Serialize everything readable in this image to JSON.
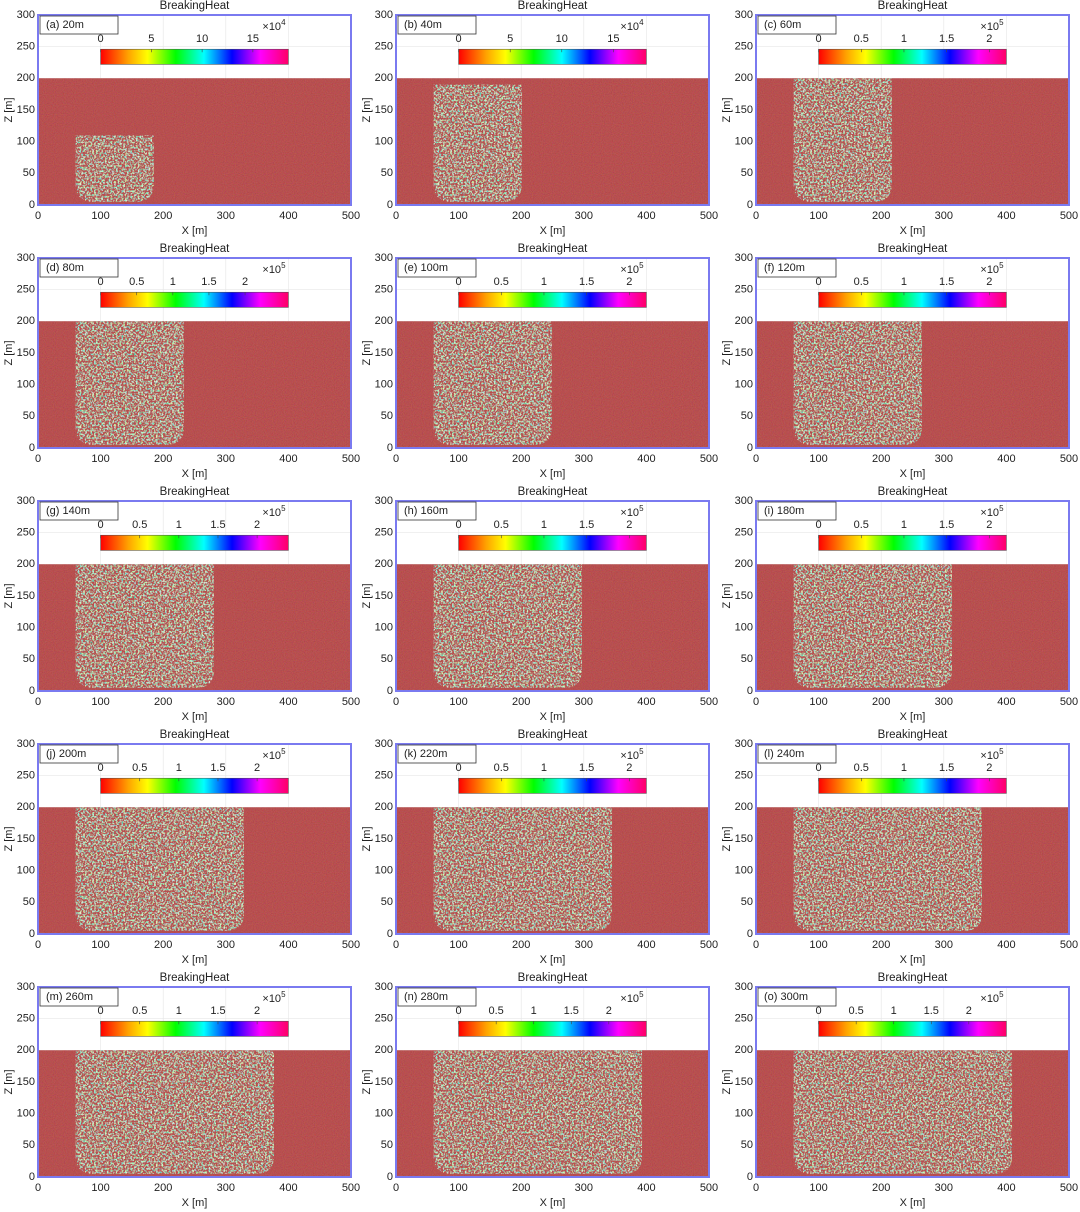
{
  "chart_data": [
    {
      "type": "image",
      "title": "BreakingHeat",
      "label": "(a) 20m",
      "x_label": "X [m]",
      "y_label": "Z [m]",
      "xlim": [
        0,
        500
      ],
      "ylim": [
        0,
        300
      ],
      "xticks": [
        0,
        100,
        200,
        300,
        400,
        500
      ],
      "yticks": [
        0,
        50,
        100,
        150,
        200,
        250,
        300
      ],
      "colorbar_lim": [
        0,
        18.5
      ],
      "colorbar_ticks": [
        0,
        5,
        10,
        15
      ],
      "colorbar_exponent": "×10",
      "colorbar_power": 4
    },
    {
      "type": "image",
      "title": "BreakingHeat",
      "label": "(b) 40m",
      "x_label": "X [m]",
      "y_label": "Z [m]",
      "xlim": [
        0,
        500
      ],
      "ylim": [
        0,
        300
      ],
      "xticks": [
        0,
        100,
        200,
        300,
        400,
        500
      ],
      "yticks": [
        0,
        50,
        100,
        150,
        200,
        250,
        300
      ],
      "colorbar_lim": [
        0,
        18.2
      ],
      "colorbar_ticks": [
        0,
        5,
        10,
        15
      ],
      "colorbar_exponent": "×10",
      "colorbar_power": 4
    },
    {
      "type": "image",
      "title": "BreakingHeat",
      "label": "(c) 60m",
      "x_label": "X [m]",
      "y_label": "Z [m]",
      "xlim": [
        0,
        500
      ],
      "ylim": [
        0,
        300
      ],
      "xticks": [
        0,
        100,
        200,
        300,
        400,
        500
      ],
      "yticks": [
        0,
        50,
        100,
        150,
        200,
        250,
        300
      ],
      "colorbar_lim": [
        0,
        2.2
      ],
      "colorbar_ticks": [
        0,
        0.5,
        1,
        1.5,
        2
      ],
      "colorbar_exponent": "×10",
      "colorbar_power": 5
    },
    {
      "type": "image",
      "title": "BreakingHeat",
      "label": "(d) 80m",
      "x_label": "X [m]",
      "y_label": "Z [m]",
      "xlim": [
        0,
        500
      ],
      "ylim": [
        0,
        300
      ],
      "xticks": [
        0,
        100,
        200,
        300,
        400,
        500
      ],
      "yticks": [
        0,
        50,
        100,
        150,
        200,
        250,
        300
      ],
      "colorbar_lim": [
        0,
        2.6
      ],
      "colorbar_ticks": [
        0,
        0.5,
        1,
        1.5,
        2
      ],
      "colorbar_exponent": "×10",
      "colorbar_power": 5
    },
    {
      "type": "image",
      "title": "BreakingHeat",
      "label": "(e) 100m",
      "x_label": "X [m]",
      "y_label": "Z [m]",
      "xlim": [
        0,
        500
      ],
      "ylim": [
        0,
        300
      ],
      "xticks": [
        0,
        100,
        200,
        300,
        400,
        500
      ],
      "yticks": [
        0,
        50,
        100,
        150,
        200,
        250,
        300
      ],
      "colorbar_lim": [
        0,
        2.2
      ],
      "colorbar_ticks": [
        0,
        0.5,
        1,
        1.5,
        2
      ],
      "colorbar_exponent": "×10",
      "colorbar_power": 5
    },
    {
      "type": "image",
      "title": "BreakingHeat",
      "label": "(f) 120m",
      "x_label": "X [m]",
      "y_label": "Z [m]",
      "xlim": [
        0,
        500
      ],
      "ylim": [
        0,
        300
      ],
      "xticks": [
        0,
        100,
        200,
        300,
        400,
        500
      ],
      "yticks": [
        0,
        50,
        100,
        150,
        200,
        250,
        300
      ],
      "colorbar_lim": [
        0,
        2.2
      ],
      "colorbar_ticks": [
        0,
        0.5,
        1,
        1.5,
        2
      ],
      "colorbar_exponent": "×10",
      "colorbar_power": 5
    },
    {
      "type": "image",
      "title": "BreakingHeat",
      "label": "(g) 140m",
      "x_label": "X [m]",
      "y_label": "Z [m]",
      "xlim": [
        0,
        500
      ],
      "ylim": [
        0,
        300
      ],
      "xticks": [
        0,
        100,
        200,
        300,
        400,
        500
      ],
      "yticks": [
        0,
        50,
        100,
        150,
        200,
        250,
        300
      ],
      "colorbar_lim": [
        0,
        2.4
      ],
      "colorbar_ticks": [
        0,
        0.5,
        1,
        1.5,
        2
      ],
      "colorbar_exponent": "×10",
      "colorbar_power": 5
    },
    {
      "type": "image",
      "title": "BreakingHeat",
      "label": "(h) 160m",
      "x_label": "X [m]",
      "y_label": "Z [m]",
      "xlim": [
        0,
        500
      ],
      "ylim": [
        0,
        300
      ],
      "xticks": [
        0,
        100,
        200,
        300,
        400,
        500
      ],
      "yticks": [
        0,
        50,
        100,
        150,
        200,
        250,
        300
      ],
      "colorbar_lim": [
        0,
        2.2
      ],
      "colorbar_ticks": [
        0,
        0.5,
        1,
        1.5,
        2
      ],
      "colorbar_exponent": "×10",
      "colorbar_power": 5
    },
    {
      "type": "image",
      "title": "BreakingHeat",
      "label": "(i) 180m",
      "x_label": "X [m]",
      "y_label": "Z [m]",
      "xlim": [
        0,
        500
      ],
      "ylim": [
        0,
        300
      ],
      "xticks": [
        0,
        100,
        200,
        300,
        400,
        500
      ],
      "yticks": [
        0,
        50,
        100,
        150,
        200,
        250,
        300
      ],
      "colorbar_lim": [
        0,
        2.2
      ],
      "colorbar_ticks": [
        0,
        0.5,
        1,
        1.5,
        2
      ],
      "colorbar_exponent": "×10",
      "colorbar_power": 5
    },
    {
      "type": "image",
      "title": "BreakingHeat",
      "label": "(j) 200m",
      "x_label": "X [m]",
      "y_label": "Z [m]",
      "xlim": [
        0,
        500
      ],
      "ylim": [
        0,
        300
      ],
      "xticks": [
        0,
        100,
        200,
        300,
        400,
        500
      ],
      "yticks": [
        0,
        50,
        100,
        150,
        200,
        250,
        300
      ],
      "colorbar_lim": [
        0,
        2.4
      ],
      "colorbar_ticks": [
        0,
        0.5,
        1,
        1.5,
        2
      ],
      "colorbar_exponent": "×10",
      "colorbar_power": 5
    },
    {
      "type": "image",
      "title": "BreakingHeat",
      "label": "(k) 220m",
      "x_label": "X [m]",
      "y_label": "Z [m]",
      "xlim": [
        0,
        500
      ],
      "ylim": [
        0,
        300
      ],
      "xticks": [
        0,
        100,
        200,
        300,
        400,
        500
      ],
      "yticks": [
        0,
        50,
        100,
        150,
        200,
        250,
        300
      ],
      "colorbar_lim": [
        0,
        2.2
      ],
      "colorbar_ticks": [
        0,
        0.5,
        1,
        1.5,
        2
      ],
      "colorbar_exponent": "×10",
      "colorbar_power": 5
    },
    {
      "type": "image",
      "title": "BreakingHeat",
      "label": "(l) 240m",
      "x_label": "X [m]",
      "y_label": "Z [m]",
      "xlim": [
        0,
        500
      ],
      "ylim": [
        0,
        300
      ],
      "xticks": [
        0,
        100,
        200,
        300,
        400,
        500
      ],
      "yticks": [
        0,
        50,
        100,
        150,
        200,
        250,
        300
      ],
      "colorbar_lim": [
        0,
        2.2
      ],
      "colorbar_ticks": [
        0,
        0.5,
        1,
        1.5,
        2
      ],
      "colorbar_exponent": "×10",
      "colorbar_power": 5
    },
    {
      "type": "image",
      "title": "BreakingHeat",
      "label": "(m) 260m",
      "x_label": "X [m]",
      "y_label": "Z [m]",
      "xlim": [
        0,
        500
      ],
      "ylim": [
        0,
        300
      ],
      "xticks": [
        0,
        100,
        200,
        300,
        400,
        500
      ],
      "yticks": [
        0,
        50,
        100,
        150,
        200,
        250,
        300
      ],
      "colorbar_lim": [
        0,
        2.4
      ],
      "colorbar_ticks": [
        0,
        0.5,
        1,
        1.5,
        2
      ],
      "colorbar_exponent": "×10",
      "colorbar_power": 5
    },
    {
      "type": "image",
      "title": "BreakingHeat",
      "label": "(n) 280m",
      "x_label": "X [m]",
      "y_label": "Z [m]",
      "xlim": [
        0,
        500
      ],
      "ylim": [
        0,
        300
      ],
      "xticks": [
        0,
        100,
        200,
        300,
        400,
        500
      ],
      "yticks": [
        0,
        50,
        100,
        150,
        200,
        250,
        300
      ],
      "colorbar_lim": [
        0,
        2.5
      ],
      "colorbar_ticks": [
        0,
        0.5,
        1,
        1.5,
        2
      ],
      "colorbar_exponent": "×10",
      "colorbar_power": 5
    },
    {
      "type": "image",
      "title": "BreakingHeat",
      "label": "(o) 300m",
      "x_label": "X [m]",
      "y_label": "Z [m]",
      "xlim": [
        0,
        500
      ],
      "ylim": [
        0,
        300
      ],
      "xticks": [
        0,
        100,
        200,
        300,
        400,
        500
      ],
      "yticks": [
        0,
        50,
        100,
        150,
        200,
        250,
        300
      ],
      "colorbar_lim": [
        0,
        2.5
      ],
      "colorbar_ticks": [
        0,
        0.5,
        1,
        1.5,
        2
      ],
      "colorbar_exponent": "×10",
      "colorbar_power": 5
    }
  ]
}
